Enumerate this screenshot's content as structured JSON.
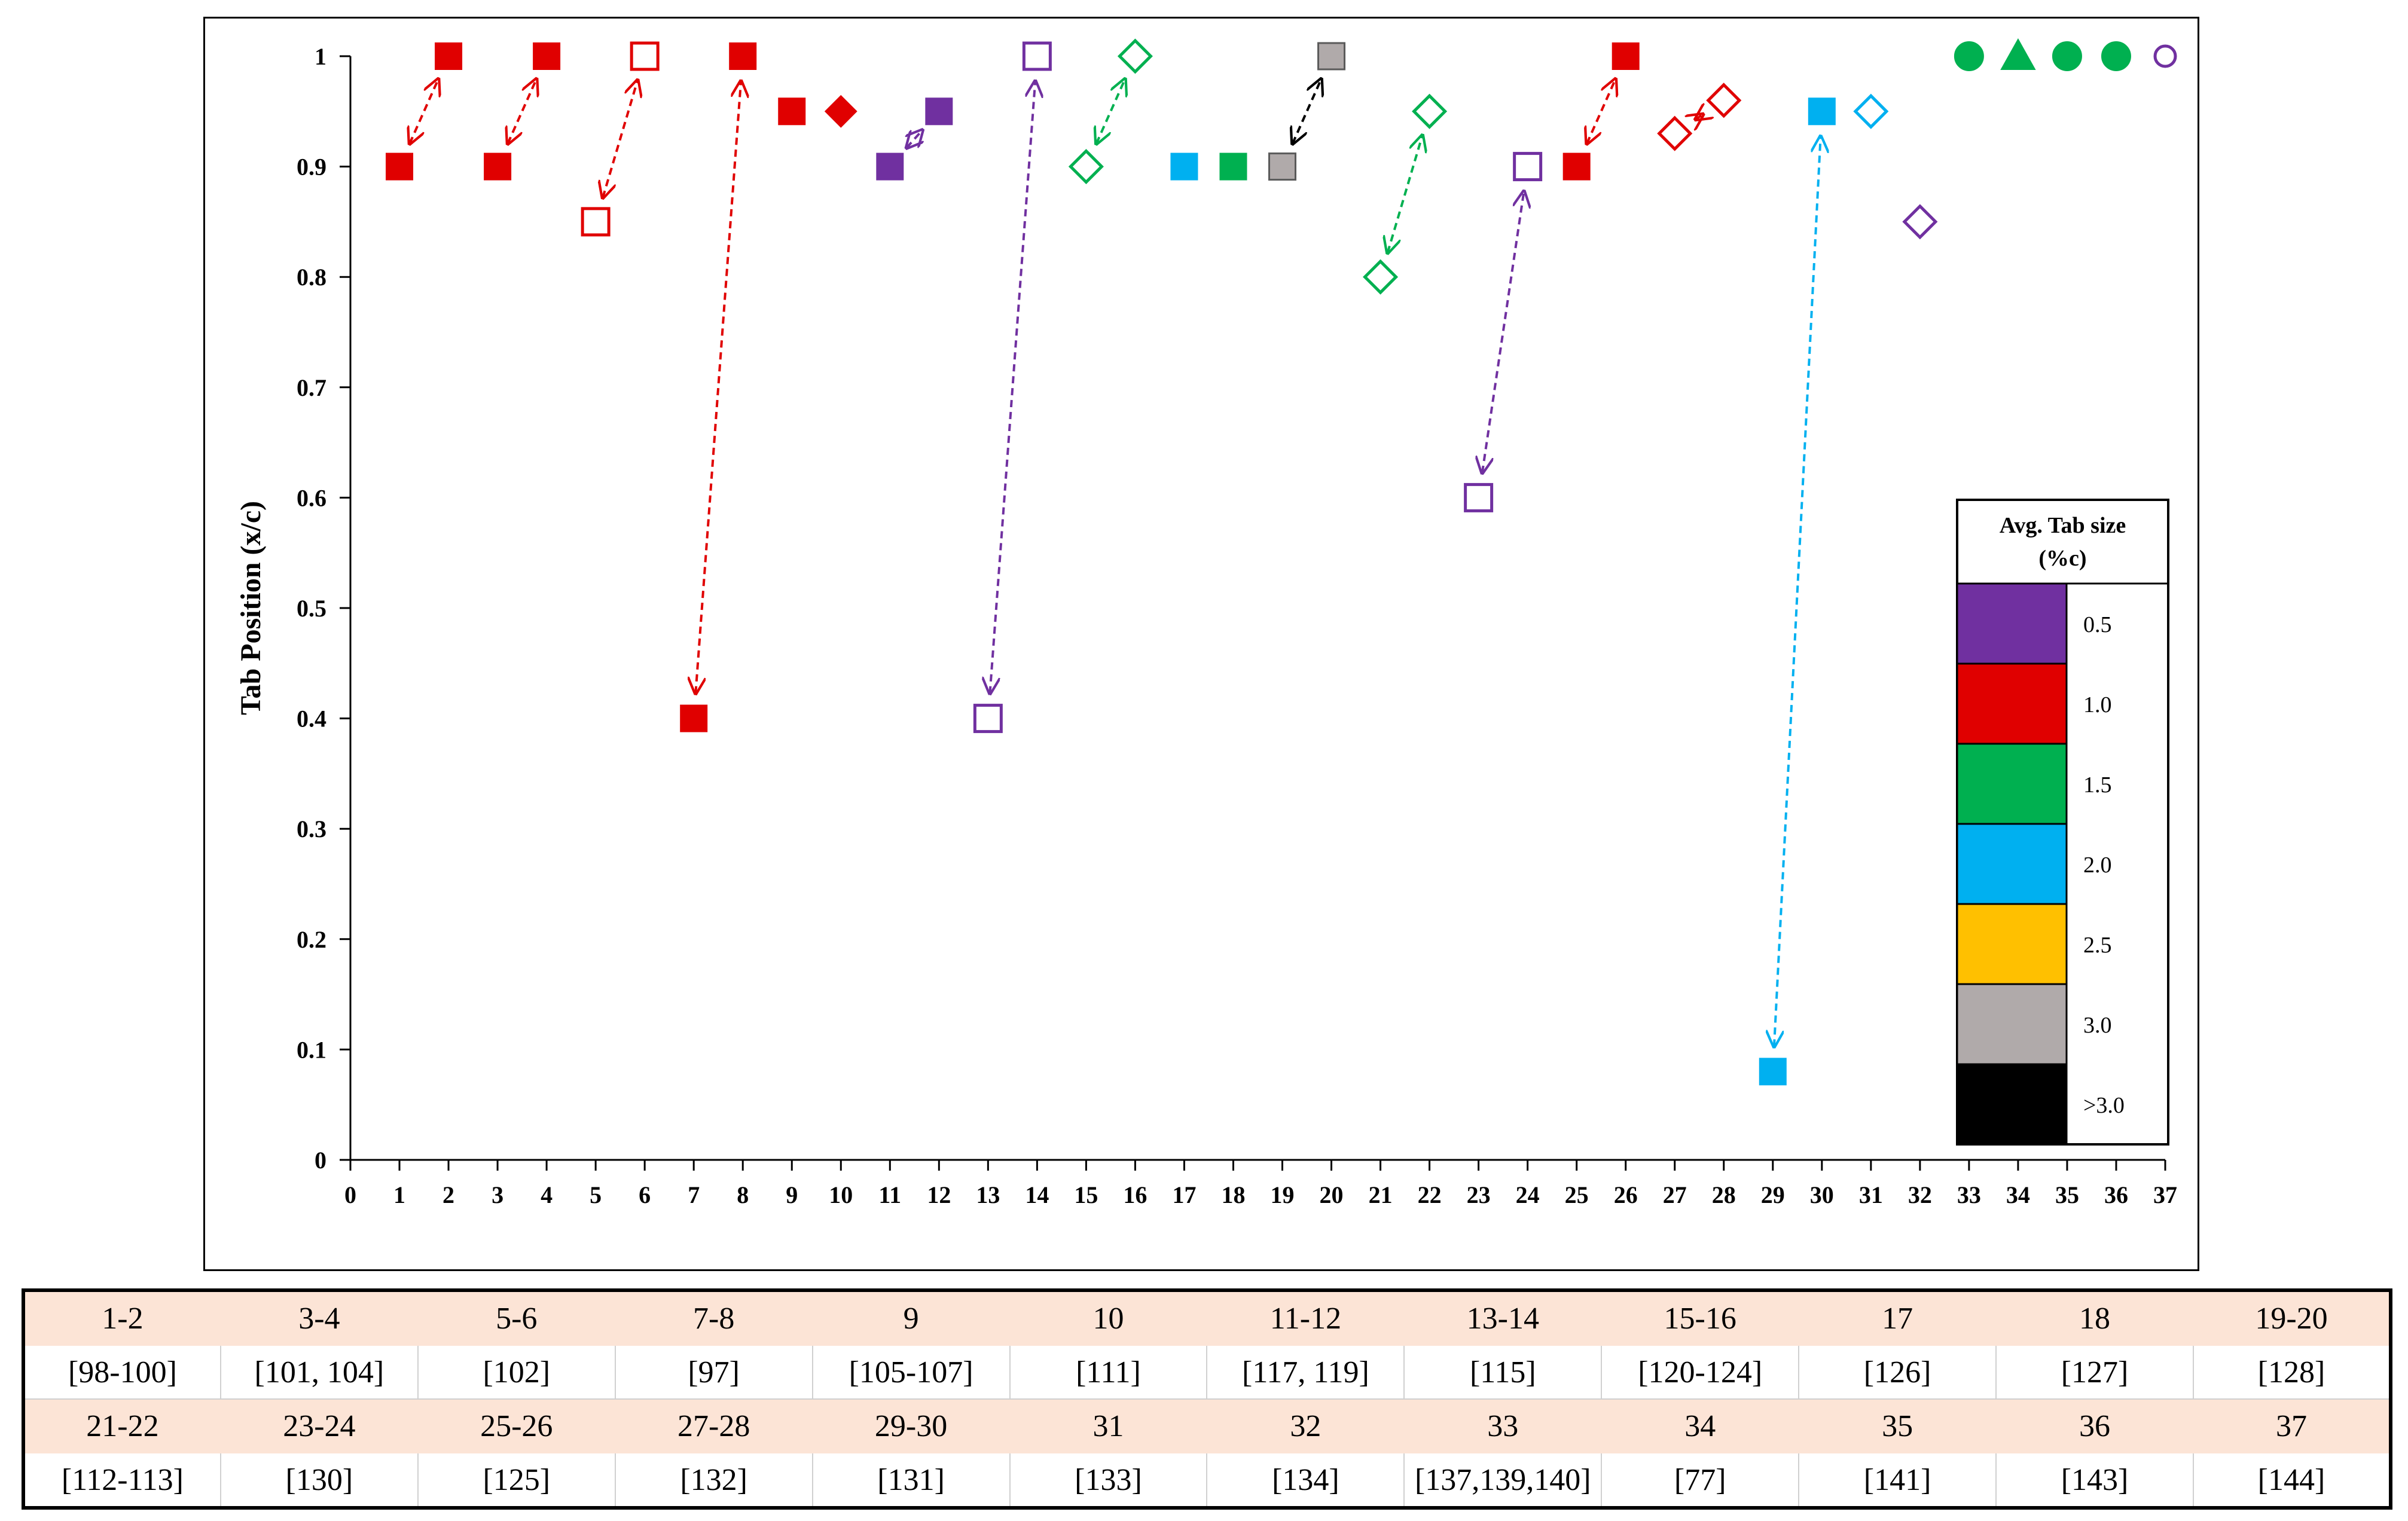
{
  "chart_data": {
    "type": "scatter",
    "title": "",
    "xlabel": "",
    "ylabel": "Tab Position (x/c)",
    "xlim": [
      0,
      37
    ],
    "ylim": [
      0,
      1
    ],
    "x_ticks": [
      "0",
      "1",
      "2",
      "3",
      "4",
      "5",
      "6",
      "7",
      "8",
      "9",
      "10",
      "11",
      "12",
      "13",
      "14",
      "15",
      "16",
      "17",
      "18",
      "19",
      "20",
      "21",
      "22",
      "23",
      "24",
      "25",
      "26",
      "27",
      "28",
      "29",
      "30",
      "31",
      "32",
      "33",
      "34",
      "35",
      "36",
      "37"
    ],
    "y_ticks": [
      "0",
      "0.1",
      "0.2",
      "0.3",
      "0.4",
      "0.5",
      "0.6",
      "0.7",
      "0.8",
      "0.9",
      "1"
    ],
    "grid": false,
    "legend_placement": "bottom-right",
    "legend": {
      "title_line1": "Avg. Tab size",
      "title_line2": "(%c)",
      "entries": [
        {
          "label": "0.5",
          "color": "#7030a0"
        },
        {
          "label": "1.0",
          "color": "#e00000"
        },
        {
          "label": "1.5",
          "color": "#00b050"
        },
        {
          "label": "2.0",
          "color": "#00b0f0"
        },
        {
          "label": "2.5",
          "color": "#ffc000"
        },
        {
          "label": "3.0",
          "color": "#b0aaaa"
        },
        {
          "label": ">3.0",
          "color": "#000000"
        }
      ]
    },
    "points": [
      {
        "x": 1,
        "y": 0.9,
        "shape": "square",
        "fill": true,
        "color": "#e00000"
      },
      {
        "x": 2,
        "y": 1.0,
        "shape": "square",
        "fill": true,
        "color": "#e00000"
      },
      {
        "x": 3,
        "y": 0.9,
        "shape": "square",
        "fill": true,
        "color": "#e00000"
      },
      {
        "x": 4,
        "y": 1.0,
        "shape": "square",
        "fill": true,
        "color": "#e00000"
      },
      {
        "x": 5,
        "y": 0.85,
        "shape": "square",
        "fill": false,
        "color": "#e00000"
      },
      {
        "x": 6,
        "y": 1.0,
        "shape": "square",
        "fill": false,
        "color": "#e00000"
      },
      {
        "x": 7,
        "y": 0.4,
        "shape": "square",
        "fill": true,
        "color": "#e00000"
      },
      {
        "x": 8,
        "y": 1.0,
        "shape": "square",
        "fill": true,
        "color": "#e00000"
      },
      {
        "x": 9,
        "y": 0.95,
        "shape": "square",
        "fill": true,
        "color": "#e00000"
      },
      {
        "x": 10,
        "y": 0.95,
        "shape": "diamond",
        "fill": true,
        "color": "#e00000"
      },
      {
        "x": 11,
        "y": 0.9,
        "shape": "square",
        "fill": true,
        "color": "#7030a0"
      },
      {
        "x": 12,
        "y": 0.95,
        "shape": "square",
        "fill": true,
        "color": "#7030a0"
      },
      {
        "x": 13,
        "y": 0.4,
        "shape": "square",
        "fill": false,
        "color": "#7030a0"
      },
      {
        "x": 14,
        "y": 1.0,
        "shape": "square",
        "fill": false,
        "color": "#7030a0"
      },
      {
        "x": 15,
        "y": 0.9,
        "shape": "diamond",
        "fill": false,
        "color": "#00b050"
      },
      {
        "x": 16,
        "y": 1.0,
        "shape": "diamond",
        "fill": false,
        "color": "#00b050"
      },
      {
        "x": 17,
        "y": 0.9,
        "shape": "square",
        "fill": true,
        "color": "#00b0f0"
      },
      {
        "x": 18,
        "y": 0.9,
        "shape": "square",
        "fill": true,
        "color": "#00b050"
      },
      {
        "x": 19,
        "y": 0.9,
        "shape": "square",
        "fill": true,
        "color": "#b0aaaa"
      },
      {
        "x": 20,
        "y": 1.0,
        "shape": "square",
        "fill": true,
        "color": "#b0aaaa"
      },
      {
        "x": 21,
        "y": 0.8,
        "shape": "diamond",
        "fill": false,
        "color": "#00b050"
      },
      {
        "x": 22,
        "y": 0.95,
        "shape": "diamond",
        "fill": false,
        "color": "#00b050"
      },
      {
        "x": 23,
        "y": 0.6,
        "shape": "square",
        "fill": false,
        "color": "#7030a0"
      },
      {
        "x": 24,
        "y": 0.9,
        "shape": "square",
        "fill": false,
        "color": "#7030a0"
      },
      {
        "x": 25,
        "y": 0.9,
        "shape": "square",
        "fill": true,
        "color": "#e00000"
      },
      {
        "x": 26,
        "y": 1.0,
        "shape": "square",
        "fill": true,
        "color": "#e00000"
      },
      {
        "x": 27,
        "y": 0.93,
        "shape": "diamond",
        "fill": false,
        "color": "#e00000"
      },
      {
        "x": 28,
        "y": 0.96,
        "shape": "diamond",
        "fill": false,
        "color": "#e00000"
      },
      {
        "x": 29,
        "y": 0.08,
        "shape": "square",
        "fill": true,
        "color": "#00b0f0"
      },
      {
        "x": 30,
        "y": 0.95,
        "shape": "square",
        "fill": true,
        "color": "#00b0f0"
      },
      {
        "x": 31,
        "y": 0.95,
        "shape": "diamond",
        "fill": false,
        "color": "#00b0f0"
      },
      {
        "x": 32,
        "y": 0.85,
        "shape": "diamond",
        "fill": false,
        "color": "#7030a0"
      },
      {
        "x": 33,
        "y": 1.0,
        "shape": "circle",
        "fill": true,
        "color": "#00b050"
      },
      {
        "x": 34,
        "y": 1.0,
        "shape": "triangle",
        "fill": true,
        "color": "#00b050"
      },
      {
        "x": 35,
        "y": 1.0,
        "shape": "circle",
        "fill": true,
        "color": "#00b050"
      },
      {
        "x": 36,
        "y": 1.0,
        "shape": "circle",
        "fill": true,
        "color": "#00b050"
      },
      {
        "x": 37,
        "y": 1.0,
        "shape": "circle",
        "fill": false,
        "color": "#7030a0"
      }
    ],
    "arrows": [
      {
        "from": 1,
        "to": 2,
        "color": "#e00000"
      },
      {
        "from": 3,
        "to": 4,
        "color": "#e00000"
      },
      {
        "from": 5,
        "to": 6,
        "color": "#e00000"
      },
      {
        "from": 7,
        "to": 8,
        "color": "#e00000"
      },
      {
        "from": 11,
        "to": 12,
        "color": "#7030a0"
      },
      {
        "from": 13,
        "to": 14,
        "color": "#7030a0"
      },
      {
        "from": 15,
        "to": 16,
        "color": "#00b050"
      },
      {
        "from": 19,
        "to": 20,
        "color": "#000000"
      },
      {
        "from": 21,
        "to": 22,
        "color": "#00b050"
      },
      {
        "from": 23,
        "to": 24,
        "color": "#7030a0"
      },
      {
        "from": 25,
        "to": 26,
        "color": "#e00000"
      },
      {
        "from": 27,
        "to": 28,
        "color": "#e00000"
      },
      {
        "from": 29,
        "to": 30,
        "color": "#00b0f0"
      }
    ]
  },
  "reference_table": {
    "rows": [
      {
        "kind": "hdr",
        "cells": [
          "1-2",
          "3-4",
          "5-6",
          "7-8",
          "9",
          "10",
          "11-12",
          "13-14",
          "15-16",
          "17",
          "18",
          "19-20"
        ]
      },
      {
        "kind": "val",
        "cells": [
          "[98-100]",
          "[101, 104]",
          "[102]",
          "[97]",
          "[105-107]",
          "[111]",
          "[117, 119]",
          "[115]",
          "[120-124]",
          "[126]",
          "[127]",
          "[128]"
        ]
      },
      {
        "kind": "hdr",
        "cells": [
          "21-22",
          "23-24",
          "25-26",
          "27-28",
          "29-30",
          "31",
          "32",
          "33",
          "34",
          "35",
          "36",
          "37"
        ]
      },
      {
        "kind": "val",
        "cells": [
          "[112-113]",
          "[130]",
          "[125]",
          "[132]",
          "[131]",
          "[133]",
          "[134]",
          "[137,139,140]",
          "[77]",
          "[141]",
          "[143]",
          "[144]"
        ]
      }
    ]
  }
}
